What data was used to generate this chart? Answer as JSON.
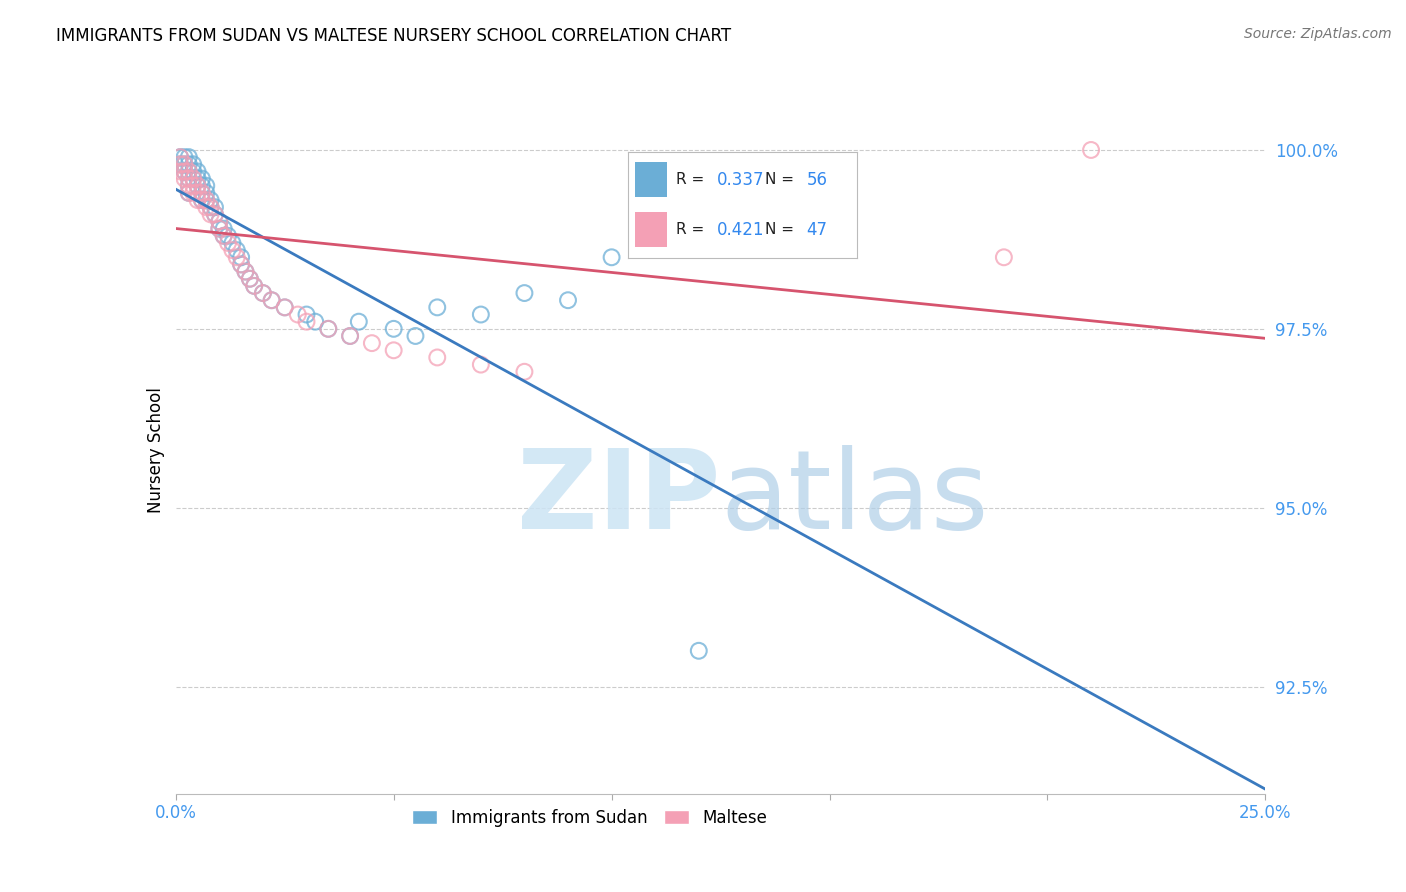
{
  "title": "IMMIGRANTS FROM SUDAN VS MALTESE NURSERY SCHOOL CORRELATION CHART",
  "source": "Source: ZipAtlas.com",
  "ylabel": "Nursery School",
  "sudan_color": "#6baed6",
  "maltese_color": "#f4a0b5",
  "trendline_sudan_color": "#3a7abf",
  "trendline_maltese_color": "#d6546e",
  "legend_sudan_R": "0.337",
  "legend_sudan_N": "56",
  "legend_maltese_R": "0.421",
  "legend_maltese_N": "47",
  "legend_label_sudan": "Immigrants from Sudan",
  "legend_label_maltese": "Maltese",
  "sudan_x": [
    0.001,
    0.001,
    0.002,
    0.002,
    0.002,
    0.003,
    0.003,
    0.003,
    0.003,
    0.003,
    0.003,
    0.004,
    0.004,
    0.004,
    0.005,
    0.005,
    0.005,
    0.006,
    0.006,
    0.006,
    0.006,
    0.007,
    0.007,
    0.007,
    0.008,
    0.008,
    0.009,
    0.009,
    0.01,
    0.01,
    0.011,
    0.011,
    0.012,
    0.013,
    0.014,
    0.015,
    0.015,
    0.016,
    0.017,
    0.018,
    0.02,
    0.022,
    0.025,
    0.03,
    0.032,
    0.035,
    0.04,
    0.042,
    0.05,
    0.055,
    0.06,
    0.07,
    0.08,
    0.09,
    0.1,
    0.12
  ],
  "sudan_y": [
    0.999,
    0.998,
    0.999,
    0.998,
    0.997,
    0.999,
    0.998,
    0.997,
    0.996,
    0.995,
    0.994,
    0.998,
    0.997,
    0.996,
    0.997,
    0.996,
    0.995,
    0.996,
    0.995,
    0.994,
    0.993,
    0.995,
    0.994,
    0.993,
    0.993,
    0.992,
    0.992,
    0.991,
    0.99,
    0.989,
    0.989,
    0.988,
    0.988,
    0.987,
    0.986,
    0.985,
    0.984,
    0.983,
    0.982,
    0.981,
    0.98,
    0.979,
    0.978,
    0.977,
    0.976,
    0.975,
    0.974,
    0.976,
    0.975,
    0.974,
    0.978,
    0.977,
    0.98,
    0.979,
    0.985,
    0.93
  ],
  "maltese_x": [
    0.001,
    0.001,
    0.001,
    0.002,
    0.002,
    0.002,
    0.003,
    0.003,
    0.003,
    0.003,
    0.004,
    0.004,
    0.004,
    0.005,
    0.005,
    0.005,
    0.006,
    0.006,
    0.007,
    0.007,
    0.008,
    0.008,
    0.009,
    0.01,
    0.01,
    0.011,
    0.012,
    0.013,
    0.014,
    0.015,
    0.016,
    0.017,
    0.018,
    0.02,
    0.022,
    0.025,
    0.028,
    0.03,
    0.035,
    0.04,
    0.045,
    0.05,
    0.06,
    0.07,
    0.08,
    0.19,
    0.21
  ],
  "maltese_y": [
    0.999,
    0.998,
    0.997,
    0.998,
    0.997,
    0.996,
    0.997,
    0.996,
    0.995,
    0.994,
    0.996,
    0.995,
    0.994,
    0.995,
    0.994,
    0.993,
    0.994,
    0.993,
    0.993,
    0.992,
    0.992,
    0.991,
    0.991,
    0.99,
    0.989,
    0.988,
    0.987,
    0.986,
    0.985,
    0.984,
    0.983,
    0.982,
    0.981,
    0.98,
    0.979,
    0.978,
    0.977,
    0.976,
    0.975,
    0.974,
    0.973,
    0.972,
    0.971,
    0.97,
    0.969,
    0.985,
    1.0
  ],
  "xlim": [
    0.0,
    0.25
  ],
  "ylim": [
    0.91,
    1.006
  ],
  "ytick_vals": [
    0.925,
    0.95,
    0.975,
    1.0
  ],
  "ytick_labels": [
    "92.5%",
    "95.0%",
    "97.5%",
    "100.0%"
  ]
}
